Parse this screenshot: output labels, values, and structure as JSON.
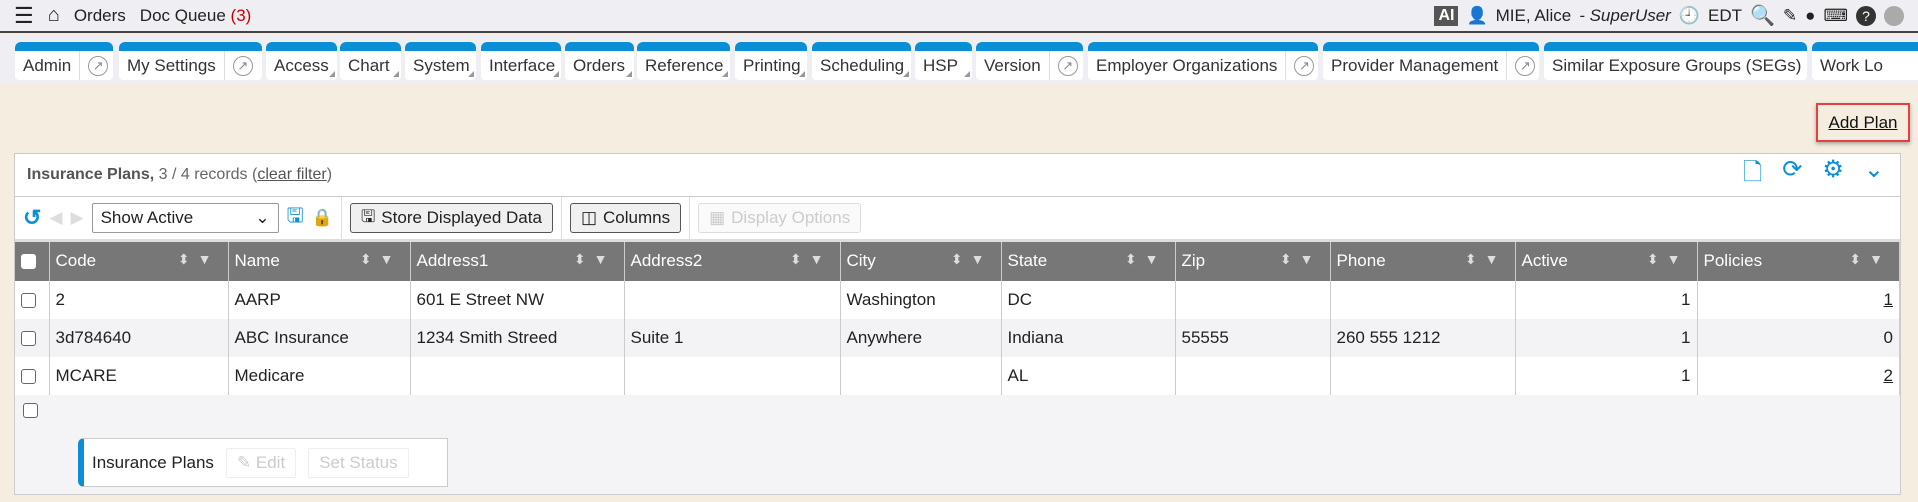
{
  "topbar": {
    "orders": "Orders",
    "doc_queue": "Doc Queue",
    "doc_queue_count": "(3)",
    "ai": "AI",
    "user": "MIE, Alice",
    "role": "- SuperUser",
    "timezone": "EDT"
  },
  "tabs": [
    {
      "label": "Admin",
      "ext": true
    },
    {
      "label": "My Settings",
      "ext": true
    },
    {
      "label": "Access"
    },
    {
      "label": "Chart"
    },
    {
      "label": "System"
    },
    {
      "label": "Interface"
    },
    {
      "label": "Orders"
    },
    {
      "label": "Reference"
    },
    {
      "label": "Printing"
    },
    {
      "label": "Scheduling"
    },
    {
      "label": "HSP"
    },
    {
      "label": "Version",
      "ext": true
    },
    {
      "label": "Employer Organizations",
      "ext": true
    },
    {
      "label": "Provider Management",
      "ext": true
    },
    {
      "label": "Similar Exposure Groups (SEGs)",
      "ext": true
    },
    {
      "label": "Work Lo"
    }
  ],
  "add_plan": "Add Plan",
  "panel": {
    "title": "Insurance Plans,",
    "records": "3 / 4 records",
    "clear_filter": "clear filter",
    "filter_select": "Show Active",
    "store_btn": "Store Displayed Data",
    "columns_btn": "Columns",
    "display_options_btn": "Display Options",
    "columns": [
      "Code",
      "Name",
      "Address1",
      "Address2",
      "City",
      "State",
      "Zip",
      "Phone",
      "Active",
      "Policies"
    ],
    "rows": [
      [
        "2",
        "AARP",
        "601 E Street NW",
        "",
        "Washington",
        "DC",
        "",
        "",
        "1",
        "1"
      ],
      [
        "3d784640",
        "ABC Insurance",
        "1234 Smith Streed",
        "Suite 1",
        "Anywhere",
        "Indiana",
        "55555",
        "260 555 1212",
        "1",
        "0"
      ],
      [
        "MCARE",
        "Medicare",
        "",
        "",
        "",
        "AL",
        "",
        "",
        "1",
        "2"
      ]
    ],
    "footer": {
      "label": "Insurance Plans",
      "edit": "Edit",
      "set_status": "Set Status"
    }
  },
  "colors": {
    "accent": "#0a8fd6",
    "header": "#777777",
    "highlight": "#e84040"
  }
}
